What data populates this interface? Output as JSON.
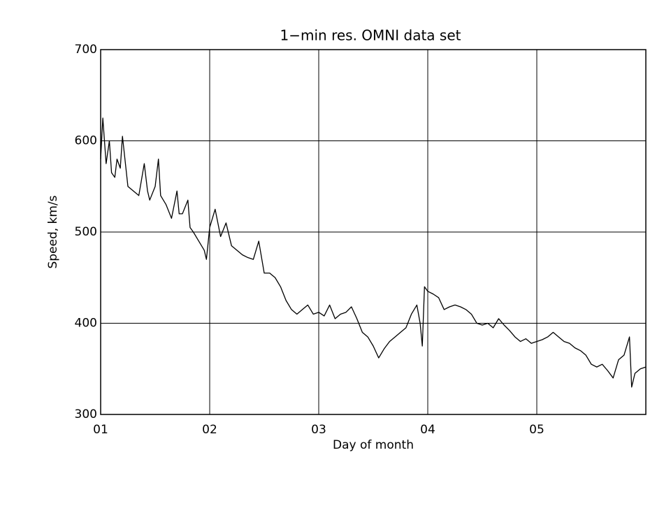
{
  "chart_data": {
    "type": "line",
    "title": "1−min res. OMNI data set",
    "xlabel": "Day of month",
    "ylabel": "Speed, km/s",
    "x": [
      1.0,
      1.02,
      1.05,
      1.08,
      1.1,
      1.13,
      1.15,
      1.18,
      1.2,
      1.25,
      1.3,
      1.35,
      1.4,
      1.43,
      1.45,
      1.5,
      1.53,
      1.55,
      1.6,
      1.65,
      1.7,
      1.72,
      1.75,
      1.8,
      1.82,
      1.85,
      1.9,
      1.95,
      1.97,
      2.0,
      2.05,
      2.1,
      2.15,
      2.2,
      2.25,
      2.3,
      2.35,
      2.4,
      2.45,
      2.5,
      2.55,
      2.6,
      2.65,
      2.7,
      2.75,
      2.8,
      2.85,
      2.9,
      2.95,
      3.0,
      3.05,
      3.1,
      3.15,
      3.2,
      3.25,
      3.3,
      3.35,
      3.4,
      3.45,
      3.5,
      3.55,
      3.6,
      3.65,
      3.7,
      3.75,
      3.8,
      3.85,
      3.9,
      3.93,
      3.95,
      3.97,
      4.0,
      4.05,
      4.1,
      4.15,
      4.2,
      4.25,
      4.3,
      4.35,
      4.4,
      4.45,
      4.5,
      4.55,
      4.6,
      4.65,
      4.7,
      4.75,
      4.8,
      4.85,
      4.9,
      4.95,
      5.0,
      5.05,
      5.1,
      5.15,
      5.2,
      5.25,
      5.3,
      5.35,
      5.4,
      5.45,
      5.5,
      5.55,
      5.6,
      5.65,
      5.7,
      5.75,
      5.8,
      5.85,
      5.87,
      5.9,
      5.95,
      6.0
    ],
    "values": [
      580,
      625,
      575,
      600,
      565,
      560,
      580,
      570,
      605,
      550,
      545,
      540,
      575,
      545,
      535,
      550,
      580,
      540,
      530,
      515,
      545,
      520,
      520,
      535,
      505,
      500,
      490,
      480,
      470,
      505,
      525,
      495,
      510,
      485,
      480,
      475,
      472,
      470,
      490,
      455,
      455,
      450,
      440,
      425,
      415,
      410,
      415,
      420,
      410,
      412,
      408,
      420,
      405,
      410,
      412,
      418,
      405,
      390,
      385,
      375,
      362,
      372,
      380,
      385,
      390,
      395,
      410,
      420,
      400,
      375,
      440,
      435,
      432,
      428,
      415,
      418,
      420,
      418,
      415,
      410,
      400,
      398,
      400,
      395,
      405,
      398,
      392,
      385,
      380,
      383,
      378,
      380,
      382,
      385,
      390,
      385,
      380,
      378,
      373,
      370,
      365,
      355,
      352,
      355,
      348,
      340,
      360,
      365,
      385,
      330,
      345,
      350,
      352
    ],
    "color": "#000000",
    "xlim": [
      1,
      6
    ],
    "xticks": [
      {
        "value": 1,
        "label": "01"
      },
      {
        "value": 2,
        "label": "02"
      },
      {
        "value": 3,
        "label": "03"
      },
      {
        "value": 4,
        "label": "04"
      },
      {
        "value": 5,
        "label": "05"
      }
    ],
    "ylim": [
      300,
      700
    ],
    "yticks": [
      300,
      400,
      500,
      600,
      700
    ],
    "grid": true
  }
}
